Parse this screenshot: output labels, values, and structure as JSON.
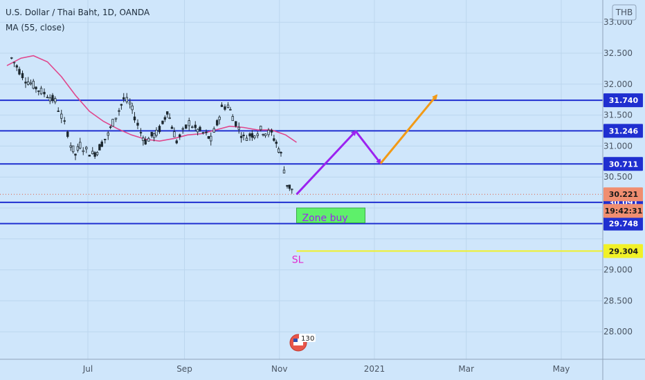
{
  "header": {
    "title": "U.S. Dollar / Thai Baht, 1D, OANDA",
    "indicator": "MA (55, close)"
  },
  "currency_button": "THB",
  "countdown": "19:42:31",
  "event_badge_count": "13",
  "event_badge_extra": "0",
  "colors": {
    "background": "#cfe6fb",
    "level_line": "#1f2fd0",
    "candle": "#1d2830",
    "ma_line": "#e0468c",
    "arrow_purple": "#9b22f0",
    "arrow_orange": "#f29a16",
    "zone_fill": "#5ef06a",
    "zone_text": "#9b22f0",
    "sl_line": "#f1f127",
    "sl_text": "#e02ad0",
    "current_price_box": "#f08e70"
  },
  "chart_data": {
    "type": "candlestick",
    "title": "U.S. Dollar / Thai Baht, 1D, OANDA",
    "indicator": "MA (55, close)",
    "x_tick_labels": [
      "Jul",
      "Sep",
      "Nov",
      "2021",
      "Mar",
      "May"
    ],
    "y_ticks": [
      28.0,
      28.5,
      29.0,
      29.5,
      30.0,
      30.5,
      31.0,
      31.5,
      32.0,
      32.5,
      33.0
    ],
    "y_tick_labels": [
      "28.000",
      "28.500",
      "29.000",
      "",
      "",
      "30.500",
      "31.000",
      "31.500",
      "32.000",
      "32.500",
      "33.000"
    ],
    "ylim": [
      27.6,
      33.3
    ],
    "price_series": [
      {
        "date": "2020-05-13",
        "price": 32.42
      },
      {
        "date": "2020-05-18",
        "price": 32.22
      },
      {
        "date": "2020-05-22",
        "price": 32.08
      },
      {
        "date": "2020-05-27",
        "price": 31.98
      },
      {
        "date": "2020-06-01",
        "price": 31.88
      },
      {
        "date": "2020-06-05",
        "price": 31.83
      },
      {
        "date": "2020-06-10",
        "price": 31.72
      },
      {
        "date": "2020-06-14",
        "price": 31.48
      },
      {
        "date": "2020-06-18",
        "price": 31.22
      },
      {
        "date": "2020-06-20",
        "price": 31.02
      },
      {
        "date": "2020-06-23",
        "price": 30.86
      },
      {
        "date": "2020-06-26",
        "price": 31.02
      },
      {
        "date": "2020-06-30",
        "price": 30.93
      },
      {
        "date": "2020-07-04",
        "price": 30.87
      },
      {
        "date": "2020-07-07",
        "price": 30.92
      },
      {
        "date": "2020-07-10",
        "price": 31.05
      },
      {
        "date": "2020-07-14",
        "price": 31.18
      },
      {
        "date": "2020-07-17",
        "price": 31.38
      },
      {
        "date": "2020-07-21",
        "price": 31.58
      },
      {
        "date": "2020-07-24",
        "price": 31.76
      },
      {
        "date": "2020-07-28",
        "price": 31.68
      },
      {
        "date": "2020-07-31",
        "price": 31.48
      },
      {
        "date": "2020-08-04",
        "price": 31.22
      },
      {
        "date": "2020-08-07",
        "price": 31.08
      },
      {
        "date": "2020-08-11",
        "price": 31.16
      },
      {
        "date": "2020-08-14",
        "price": 31.2
      },
      {
        "date": "2020-08-18",
        "price": 31.35
      },
      {
        "date": "2020-08-21",
        "price": 31.58
      },
      {
        "date": "2020-08-24",
        "price": 31.32
      },
      {
        "date": "2020-08-27",
        "price": 31.08
      },
      {
        "date": "2020-08-31",
        "price": 31.22
      },
      {
        "date": "2020-09-04",
        "price": 31.38
      },
      {
        "date": "2020-09-08",
        "price": 31.28
      },
      {
        "date": "2020-09-11",
        "price": 31.24
      },
      {
        "date": "2020-09-15",
        "price": 31.18
      },
      {
        "date": "2020-09-18",
        "price": 31.1
      },
      {
        "date": "2020-09-22",
        "price": 31.36
      },
      {
        "date": "2020-09-25",
        "price": 31.62
      },
      {
        "date": "2020-09-29",
        "price": 31.66
      },
      {
        "date": "2020-10-02",
        "price": 31.48
      },
      {
        "date": "2020-10-06",
        "price": 31.28
      },
      {
        "date": "2020-10-09",
        "price": 31.13
      },
      {
        "date": "2020-10-13",
        "price": 31.18
      },
      {
        "date": "2020-10-16",
        "price": 31.2
      },
      {
        "date": "2020-10-20",
        "price": 31.26
      },
      {
        "date": "2020-10-23",
        "price": 31.22
      },
      {
        "date": "2020-10-27",
        "price": 31.2
      },
      {
        "date": "2020-10-30",
        "price": 31.05
      },
      {
        "date": "2020-11-02",
        "price": 30.86
      },
      {
        "date": "2020-11-04",
        "price": 30.62
      },
      {
        "date": "2020-11-06",
        "price": 30.38
      },
      {
        "date": "2020-11-09",
        "price": 30.3
      },
      {
        "date": "2020-11-11",
        "price": 30.22
      }
    ],
    "moving_average": [
      {
        "date": "2020-05-10",
        "price": 32.3
      },
      {
        "date": "2020-05-19",
        "price": 32.42
      },
      {
        "date": "2020-05-27",
        "price": 32.46
      },
      {
        "date": "2020-06-05",
        "price": 32.36
      },
      {
        "date": "2020-06-14",
        "price": 32.12
      },
      {
        "date": "2020-06-23",
        "price": 31.82
      },
      {
        "date": "2020-07-02",
        "price": 31.56
      },
      {
        "date": "2020-07-11",
        "price": 31.4
      },
      {
        "date": "2020-07-20",
        "price": 31.28
      },
      {
        "date": "2020-07-29",
        "price": 31.18
      },
      {
        "date": "2020-08-07",
        "price": 31.11
      },
      {
        "date": "2020-08-16",
        "price": 31.08
      },
      {
        "date": "2020-08-25",
        "price": 31.12
      },
      {
        "date": "2020-09-03",
        "price": 31.18
      },
      {
        "date": "2020-09-12",
        "price": 31.2
      },
      {
        "date": "2020-09-21",
        "price": 31.26
      },
      {
        "date": "2020-09-30",
        "price": 31.32
      },
      {
        "date": "2020-10-09",
        "price": 31.3
      },
      {
        "date": "2020-10-18",
        "price": 31.26
      },
      {
        "date": "2020-10-27",
        "price": 31.26
      },
      {
        "date": "2020-11-05",
        "price": 31.18
      },
      {
        "date": "2020-11-12",
        "price": 31.06
      }
    ],
    "horizontal_levels": [
      {
        "price": 31.74,
        "label": "31.740"
      },
      {
        "price": 31.246,
        "label": "31.246"
      },
      {
        "price": 30.711,
        "label": "30.711"
      },
      {
        "price": 30.091,
        "label": "30.091"
      },
      {
        "price": 29.748,
        "label": "29.748"
      }
    ],
    "stop_loss": {
      "price": 29.304,
      "label": "29.304",
      "text": "SL"
    },
    "current_price": {
      "price": 30.221,
      "label": "30.221"
    },
    "zone": {
      "text": "Zone buy",
      "price_top": 30.0,
      "price_bottom": 29.76,
      "start": "2020-11-12",
      "end": "2020-12-26"
    },
    "projected_path_purple": [
      {
        "date": "2020-11-12",
        "price": 30.22
      },
      {
        "date": "2020-12-20",
        "price": 31.24
      },
      {
        "date": "2021-01-05",
        "price": 30.72
      }
    ],
    "projected_path_orange": [
      {
        "date": "2021-01-05",
        "price": 30.72
      },
      {
        "date": "2021-02-10",
        "price": 31.82
      }
    ]
  }
}
